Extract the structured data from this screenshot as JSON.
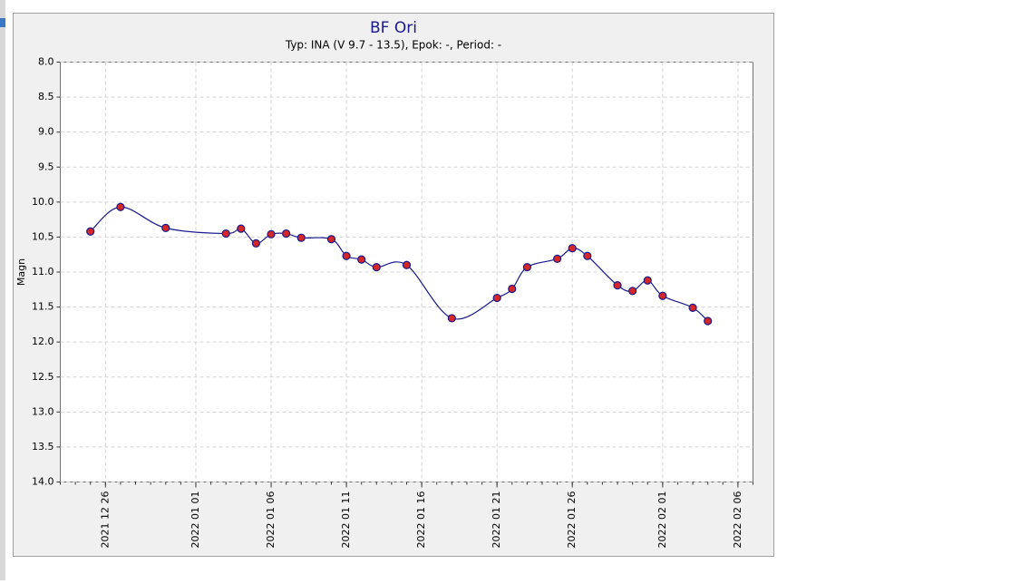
{
  "chart_data": {
    "type": "line",
    "title": "BF Ori",
    "subtitle": "Typ: INA (V 9.7 - 13.5), Epok: -, Period: -",
    "y_label": "Magn",
    "x": [
      "2021-12-25",
      "2021-12-27",
      "2021-12-30",
      "2022-01-03",
      "2022-01-04",
      "2022-01-05",
      "2022-01-06",
      "2022-01-07",
      "2022-01-08",
      "2022-01-10",
      "2022-01-11",
      "2022-01-12",
      "2022-01-13",
      "2022-01-15",
      "2022-01-18",
      "2022-01-21",
      "2022-01-22",
      "2022-01-23",
      "2022-01-25",
      "2022-01-26",
      "2022-01-27",
      "2022-01-29",
      "2022-01-30",
      "2022-01-31",
      "2022-02-01",
      "2022-02-03",
      "2022-02-04"
    ],
    "series": [
      {
        "name": "V",
        "color": "#1a1a8c",
        "marker_color": "#d62728",
        "values": [
          10.42,
          10.07,
          10.37,
          10.45,
          10.38,
          10.59,
          10.46,
          10.45,
          10.51,
          10.53,
          10.77,
          10.82,
          10.93,
          10.9,
          11.66,
          11.37,
          11.24,
          10.93,
          10.81,
          10.66,
          10.77,
          11.19,
          11.27,
          11.12,
          11.34,
          11.51,
          11.7
        ]
      }
    ],
    "xlim": [
      "2021-12-23",
      "2022-02-07"
    ],
    "xticks": [
      {
        "value": "2021-12-26",
        "label": "2021 12 26"
      },
      {
        "value": "2022-01-01",
        "label": "2022 01 01"
      },
      {
        "value": "2022-01-06",
        "label": "2022 01 06"
      },
      {
        "value": "2022-01-11",
        "label": "2022 01 11"
      },
      {
        "value": "2022-01-16",
        "label": "2022 01 16"
      },
      {
        "value": "2022-01-21",
        "label": "2022 01 21"
      },
      {
        "value": "2022-01-26",
        "label": "2022 01 26"
      },
      {
        "value": "2022-02-01",
        "label": "2022 02 01"
      },
      {
        "value": "2022-02-06",
        "label": "2022 02 06"
      }
    ],
    "ylim": [
      8,
      14
    ],
    "y_inverted": true,
    "yticks": [
      {
        "value": 8,
        "label": "8.0"
      },
      8.5,
      {
        "value": 9,
        "label": "9.0"
      },
      9.5,
      {
        "value": 10,
        "label": "10.0"
      },
      10.5,
      {
        "value": 11,
        "label": "11.0"
      },
      11.5,
      {
        "value": 12,
        "label": "12.0"
      },
      12.5,
      {
        "value": 13,
        "label": "13.0"
      },
      13.5,
      {
        "value": 14,
        "label": "14.0"
      }
    ],
    "grid": true
  }
}
